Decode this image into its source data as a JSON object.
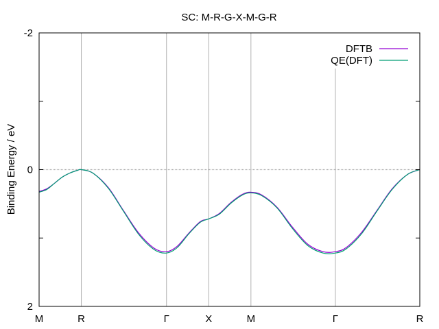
{
  "chart_data": {
    "type": "line",
    "title": "SC: M-R-G-X-M-G-R",
    "xlabel": "",
    "ylabel": "Binding Energy / eV",
    "xlim": [
      0,
      4.96
    ],
    "ylim": [
      -2,
      2
    ],
    "y_reversed": true,
    "y_ticks": [
      -2,
      -1,
      0,
      1,
      2
    ],
    "y_tick_labels": [
      "-2",
      "",
      "0",
      "",
      "2"
    ],
    "high_symmetry_points": [
      {
        "label": "M",
        "x": 0
      },
      {
        "label": "R",
        "x": 0.55
      },
      {
        "label": "Γ",
        "x": 1.66
      },
      {
        "label": "X",
        "x": 2.21
      },
      {
        "label": "M",
        "x": 2.76
      },
      {
        "label": "Γ",
        "x": 3.86
      },
      {
        "label": "R",
        "x": 4.96
      }
    ],
    "grid": "vertical lines at high-symmetry points",
    "zero_line": 0,
    "legend_position": "top-right",
    "series": [
      {
        "name": "DFTB",
        "color": "#9400d3",
        "x": [
          0,
          0.1,
          0.2,
          0.3,
          0.4,
          0.5,
          0.55,
          0.7,
          0.9,
          1.1,
          1.3,
          1.5,
          1.66,
          1.8,
          1.95,
          2.1,
          2.21,
          2.35,
          2.5,
          2.65,
          2.76,
          2.9,
          3.1,
          3.3,
          3.5,
          3.7,
          3.86,
          4.0,
          4.2,
          4.4,
          4.6,
          4.8,
          4.96
        ],
        "y": [
          0.32,
          0.28,
          0.2,
          0.11,
          0.05,
          0.01,
          0.0,
          0.05,
          0.26,
          0.6,
          0.93,
          1.15,
          1.2,
          1.12,
          0.93,
          0.76,
          0.72,
          0.64,
          0.48,
          0.36,
          0.33,
          0.37,
          0.55,
          0.84,
          1.09,
          1.2,
          1.2,
          1.14,
          0.92,
          0.6,
          0.28,
          0.07,
          0.0
        ]
      },
      {
        "name": "QE(DFT)",
        "color": "#009e73",
        "x": [
          0,
          0.1,
          0.2,
          0.3,
          0.4,
          0.5,
          0.55,
          0.7,
          0.9,
          1.1,
          1.3,
          1.5,
          1.66,
          1.8,
          1.95,
          2.1,
          2.21,
          2.35,
          2.5,
          2.65,
          2.76,
          2.9,
          3.1,
          3.3,
          3.5,
          3.7,
          3.86,
          4.0,
          4.2,
          4.4,
          4.6,
          4.8,
          4.96
        ],
        "y": [
          0.33,
          0.29,
          0.2,
          0.11,
          0.05,
          0.01,
          0.0,
          0.05,
          0.27,
          0.61,
          0.95,
          1.17,
          1.22,
          1.14,
          0.94,
          0.77,
          0.72,
          0.65,
          0.49,
          0.37,
          0.34,
          0.38,
          0.56,
          0.86,
          1.11,
          1.22,
          1.22,
          1.16,
          0.94,
          0.61,
          0.29,
          0.07,
          0.0
        ]
      }
    ]
  }
}
